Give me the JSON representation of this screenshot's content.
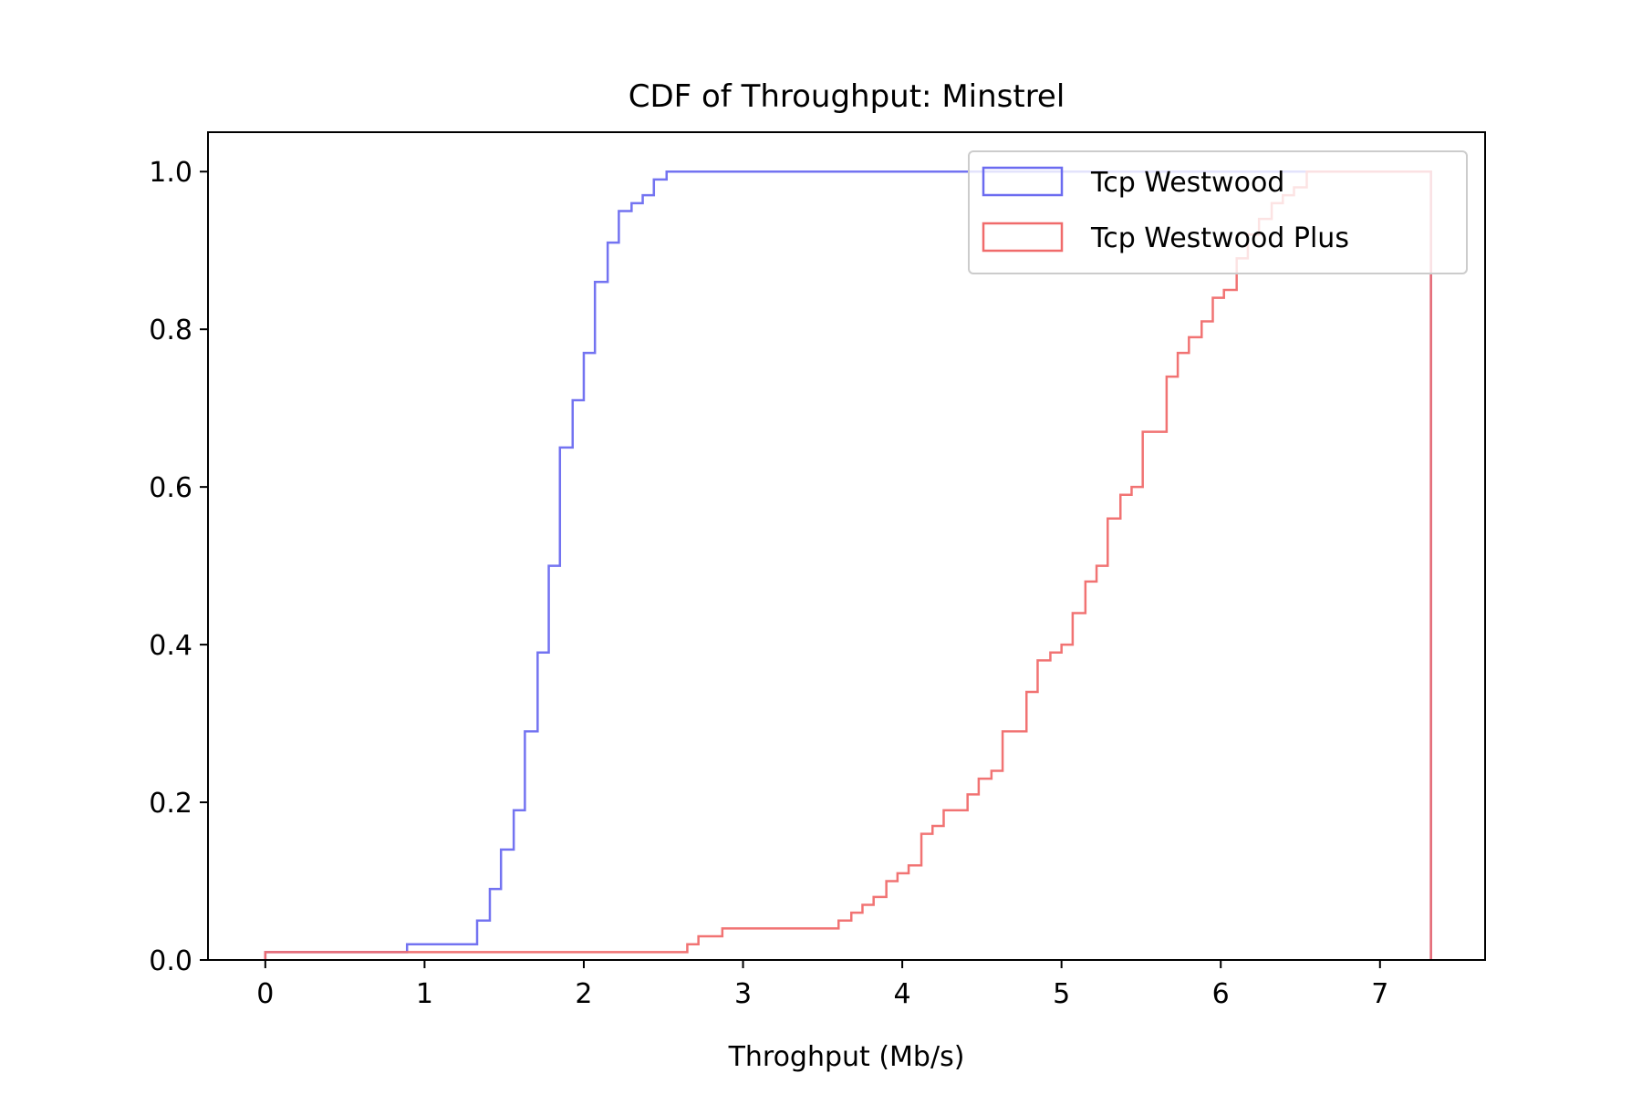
{
  "chart_data": {
    "type": "line",
    "subtype": "cumulative-step-histogram",
    "title": "CDF of Throughput: Minstrel",
    "xlabel": "Throghput (Mb/s)",
    "ylabel": "",
    "xlim": [
      -0.36,
      7.66
    ],
    "ylim": [
      0,
      1.05
    ],
    "xticks": [
      0,
      1,
      2,
      3,
      4,
      5,
      6,
      7
    ],
    "yticks": [
      0.0,
      0.2,
      0.4,
      0.6,
      0.8,
      1.0
    ],
    "xtick_labels": [
      "0",
      "1",
      "2",
      "3",
      "4",
      "5",
      "6",
      "7"
    ],
    "ytick_labels": [
      "0.0",
      "0.2",
      "0.4",
      "0.6",
      "0.8",
      "1.0"
    ],
    "grid": false,
    "legend_position": "top-right",
    "series": [
      {
        "name": "Tcp Westwood",
        "color": "#6b6bf0",
        "edges": [
          0,
          0.89,
          1.33,
          1.41,
          1.48,
          1.56,
          1.63,
          1.71,
          1.78,
          1.85,
          1.93,
          2.0,
          2.07,
          2.15,
          2.22,
          2.3,
          2.37,
          2.44,
          2.52,
          7.32
        ],
        "values": [
          0.01,
          0.02,
          0.05,
          0.09,
          0.14,
          0.19,
          0.29,
          0.39,
          0.5,
          0.65,
          0.71,
          0.77,
          0.86,
          0.91,
          0.95,
          0.96,
          0.97,
          0.99,
          1.0
        ]
      },
      {
        "name": "Tcp Westwood Plus",
        "color": "#f06b6b",
        "edges": [
          0,
          2.65,
          2.72,
          2.87,
          3.6,
          3.68,
          3.75,
          3.82,
          3.9,
          3.97,
          4.04,
          4.12,
          4.19,
          4.26,
          4.34,
          4.41,
          4.48,
          4.56,
          4.63,
          4.78,
          4.85,
          4.93,
          5.0,
          5.07,
          5.15,
          5.22,
          5.29,
          5.37,
          5.44,
          5.51,
          5.66,
          5.73,
          5.8,
          5.88,
          5.95,
          6.02,
          6.1,
          6.17,
          6.24,
          6.32,
          6.39,
          6.46,
          6.54,
          7.32
        ],
        "values": [
          0.01,
          0.02,
          0.03,
          0.04,
          0.05,
          0.06,
          0.07,
          0.08,
          0.1,
          0.11,
          0.12,
          0.16,
          0.17,
          0.19,
          0.19,
          0.21,
          0.23,
          0.24,
          0.29,
          0.34,
          0.38,
          0.39,
          0.4,
          0.44,
          0.48,
          0.5,
          0.56,
          0.59,
          0.6,
          0.67,
          0.74,
          0.77,
          0.79,
          0.81,
          0.84,
          0.85,
          0.89,
          0.92,
          0.94,
          0.96,
          0.97,
          0.98,
          1.0
        ]
      }
    ]
  }
}
